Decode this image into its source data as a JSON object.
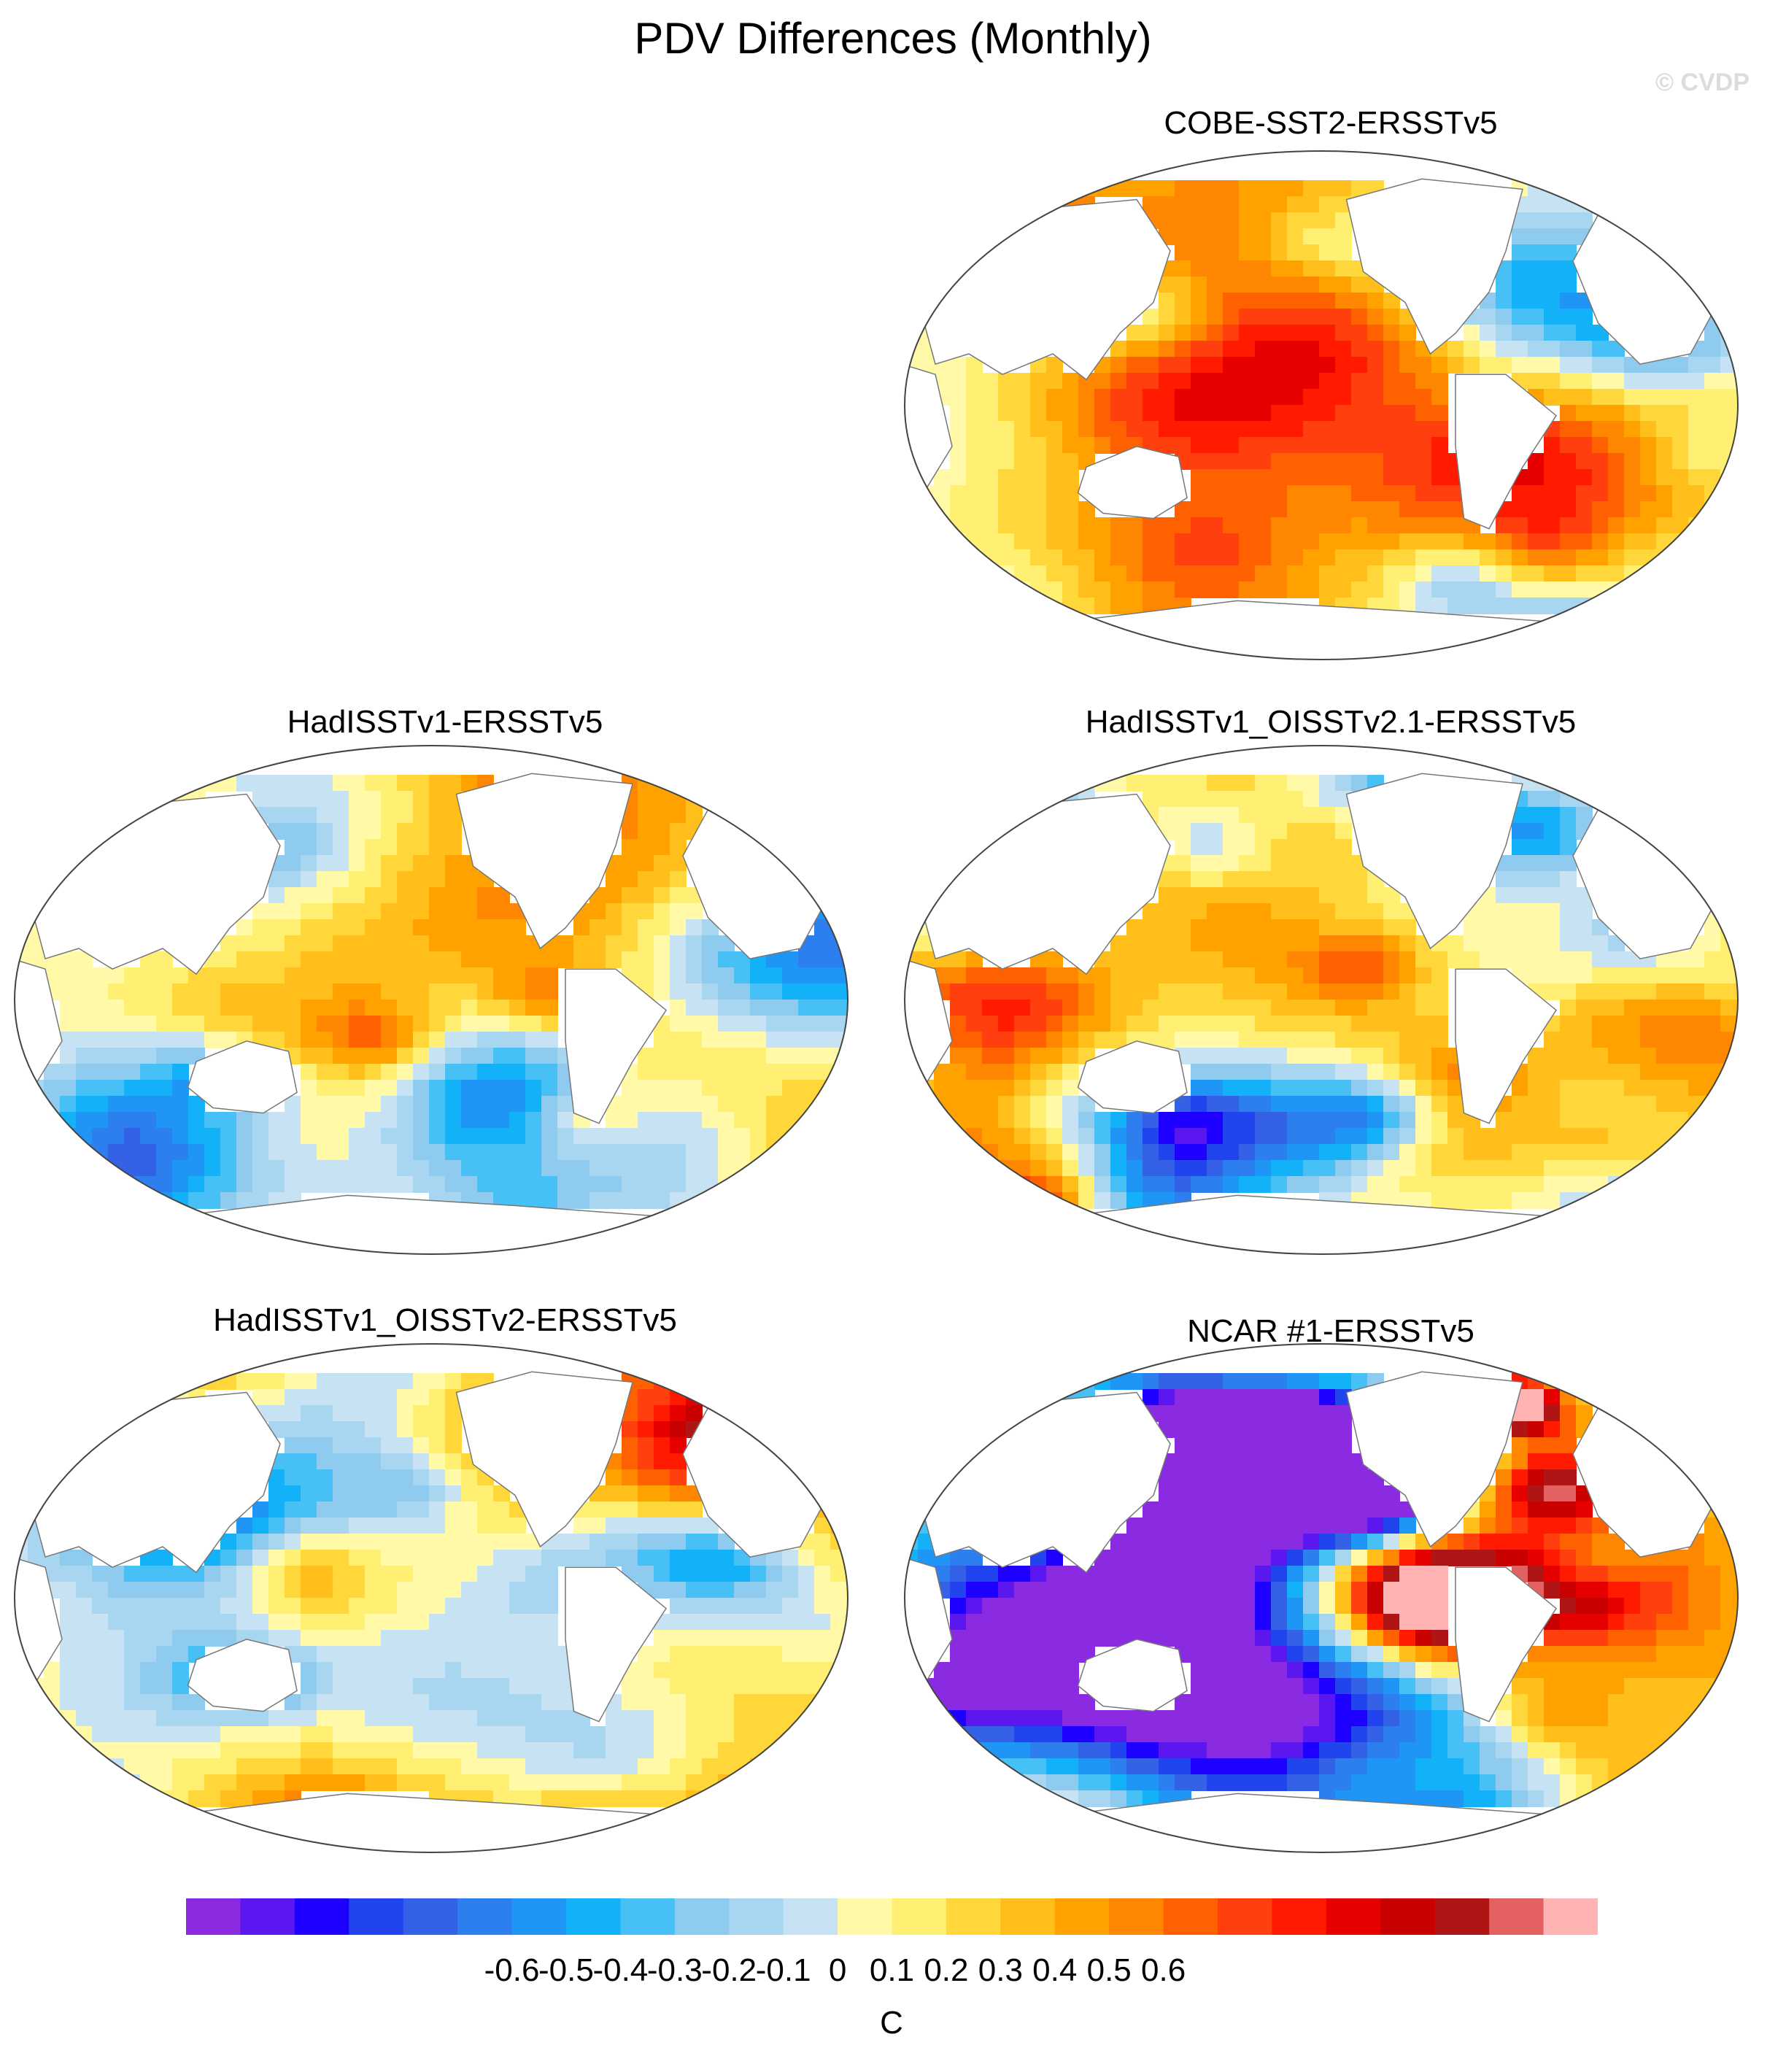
{
  "title": "PDV Differences (Monthly)",
  "watermark": "© CVDP",
  "panels": [
    {
      "title": "COBE-SST2-ERSSTv5",
      "pattern": "mixed"
    },
    {
      "title": "HadISSTv1-ERSSTv5",
      "pattern": "mixed"
    },
    {
      "title": "HadISSTv1_OISSTv2.1-ERSSTv5",
      "pattern": "noisy"
    },
    {
      "title": "HadISSTv1_OISSTv2-ERSSTv5",
      "pattern": "mixed"
    },
    {
      "title": "NCAR #1-ERSSTv5",
      "pattern": "strong"
    }
  ],
  "colorbar": {
    "unit": "C",
    "tick_labels": [
      "-0.6",
      "-0.5",
      "-0.4",
      "-0.3",
      "-0.2",
      "-0.1",
      "0",
      "0.1",
      "0.2",
      "0.3",
      "0.4",
      "0.5",
      "0.6"
    ],
    "colors": [
      "#8a2be2",
      "#5a17f0",
      "#1d00ff",
      "#2244ee",
      "#3461e6",
      "#2d7fef",
      "#1f96f5",
      "#13b1f7",
      "#47c1f5",
      "#8fcbee",
      "#a8d6f0",
      "#c7e3f3",
      "#fff9a8",
      "#fff073",
      "#ffd73b",
      "#ffbe1a",
      "#ffa200",
      "#ff8600",
      "#ff6100",
      "#ff3f0d",
      "#ff1a00",
      "#e60000",
      "#c90000",
      "#b01515",
      "#e36161",
      "#ffb3b3"
    ]
  }
}
